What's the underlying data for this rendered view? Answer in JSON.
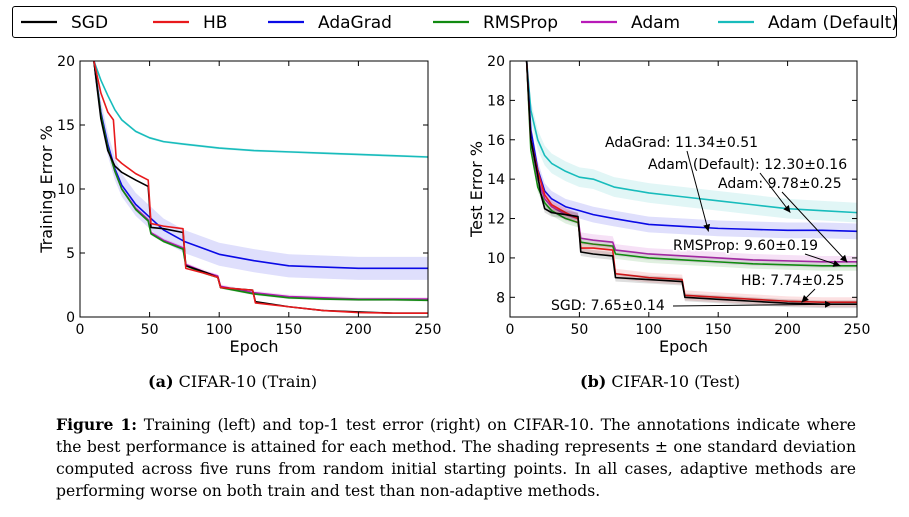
{
  "legend": {
    "entries": [
      {
        "name": "SGD",
        "color": "#000000"
      },
      {
        "name": "HB",
        "color": "#e8191c"
      },
      {
        "name": "AdaGrad",
        "color": "#0a0ae6"
      },
      {
        "name": "RMSProp",
        "color": "#118a11"
      },
      {
        "name": "Adam",
        "color": "#b81ab8"
      },
      {
        "name": "Adam (Default)",
        "color": "#18bcbc"
      }
    ]
  },
  "subcaptions": {
    "a_label": "(a)",
    "a_text": "CIFAR-10 (Train)",
    "b_label": "(b)",
    "b_text": "CIFAR-10 (Test)"
  },
  "caption": {
    "label": "Figure 1:",
    "text": "Training (left) and top-1 test error (right) on CIFAR-10. The annotations indicate where the best performance is attained for each method. The shading represents ± one standard deviation computed across five runs from random initial starting points. In all cases, adaptive methods are performing worse on both train and test than non-adaptive methods."
  },
  "chart_data": [
    {
      "type": "line",
      "xlabel": "Epoch",
      "ylabel": "Training Error %",
      "xlim": [
        0,
        250
      ],
      "ylim": [
        0,
        20
      ],
      "xticks": [
        0,
        50,
        100,
        150,
        200,
        250
      ],
      "yticks": [
        0,
        5,
        10,
        15,
        20
      ],
      "grid": false,
      "series": [
        {
          "name": "Adam (Default)",
          "color": "#18bcbc",
          "x": [
            10,
            15,
            20,
            25,
            30,
            40,
            50,
            60,
            75,
            100,
            125,
            150,
            175,
            200,
            225,
            250
          ],
          "y": [
            20,
            18.5,
            17.3,
            16.2,
            15.4,
            14.5,
            14.0,
            13.7,
            13.5,
            13.2,
            13.0,
            12.9,
            12.8,
            12.7,
            12.6,
            12.5
          ],
          "band": 0.1
        },
        {
          "name": "AdaGrad",
          "color": "#0a0ae6",
          "x": [
            10,
            15,
            20,
            25,
            30,
            40,
            50,
            60,
            75,
            90,
            100,
            125,
            150,
            175,
            200,
            225,
            250
          ],
          "y": [
            20,
            16.0,
            13.5,
            11.6,
            10.3,
            8.8,
            7.8,
            6.8,
            5.9,
            5.3,
            4.9,
            4.4,
            4.0,
            3.9,
            3.8,
            3.8,
            3.8
          ],
          "band": 0.9
        },
        {
          "name": "Adam",
          "color": "#b81ab8",
          "x": [
            10,
            15,
            20,
            25,
            30,
            40,
            49,
            51,
            60,
            74,
            76,
            90,
            99,
            101,
            125,
            150,
            175,
            200,
            225,
            250
          ],
          "y": [
            20,
            15.8,
            13.2,
            11.4,
            10.0,
            8.5,
            7.6,
            6.6,
            6.0,
            5.4,
            4.1,
            3.5,
            3.2,
            2.4,
            1.9,
            1.6,
            1.5,
            1.4,
            1.4,
            1.4
          ],
          "band": 0.15
        },
        {
          "name": "RMSProp",
          "color": "#118a11",
          "x": [
            10,
            15,
            20,
            25,
            30,
            40,
            49,
            51,
            60,
            74,
            76,
            90,
            99,
            101,
            125,
            150,
            175,
            200,
            225,
            250
          ],
          "y": [
            20,
            15.8,
            13.2,
            11.4,
            10.0,
            8.4,
            7.5,
            6.5,
            5.9,
            5.3,
            4.0,
            3.4,
            3.1,
            2.3,
            1.8,
            1.5,
            1.4,
            1.35,
            1.35,
            1.3
          ],
          "band": 0.1
        },
        {
          "name": "SGD",
          "color": "#000000",
          "x": [
            10,
            15,
            20,
            25,
            30,
            40,
            49,
            51,
            60,
            74,
            76,
            90,
            99,
            101,
            124,
            126,
            150,
            175,
            200,
            225,
            250
          ],
          "y": [
            20,
            15.5,
            13.0,
            11.8,
            11.3,
            10.7,
            10.2,
            7.0,
            6.9,
            6.6,
            4.0,
            3.5,
            3.1,
            2.3,
            2.1,
            1.2,
            0.8,
            0.5,
            0.4,
            0.3,
            0.3
          ],
          "band": 0
        },
        {
          "name": "HB",
          "color": "#e8191c",
          "x": [
            10,
            15,
            20,
            24,
            26,
            30,
            40,
            49,
            51,
            60,
            74,
            76,
            90,
            99,
            101,
            124,
            126,
            150,
            175,
            200,
            225,
            250
          ],
          "y": [
            20,
            17.5,
            16.0,
            15.4,
            12.4,
            12.0,
            11.2,
            10.7,
            7.3,
            7.1,
            6.9,
            3.8,
            3.4,
            3.1,
            2.3,
            2.1,
            1.1,
            0.8,
            0.5,
            0.35,
            0.3,
            0.3
          ],
          "band": 0
        }
      ]
    },
    {
      "type": "line",
      "xlabel": "Epoch",
      "ylabel": "Test Error %",
      "xlim": [
        0,
        250
      ],
      "ylim": [
        7,
        20
      ],
      "xticks": [
        0,
        50,
        100,
        150,
        200,
        250
      ],
      "yticks": [
        8,
        10,
        12,
        14,
        16,
        18,
        20
      ],
      "grid": false,
      "annotations": [
        {
          "text": "AdaGrad: 11.34±0.51",
          "x": 143,
          "y": 11.34
        },
        {
          "text": "Adam (Default): 12.30±0.16",
          "x": 202,
          "y": 12.3
        },
        {
          "text": "Adam: 9.78±0.25",
          "x": 243,
          "y": 9.78
        },
        {
          "text": "RMSProp: 9.60±0.19",
          "x": 238,
          "y": 9.6
        },
        {
          "text": "HB: 7.74±0.25",
          "x": 210,
          "y": 7.74
        },
        {
          "text": "SGD: 7.65±0.14",
          "x": 232,
          "y": 7.65
        }
      ],
      "series": [
        {
          "name": "Adam (Default)",
          "color": "#18bcbc",
          "x": [
            12,
            15,
            20,
            25,
            30,
            40,
            50,
            60,
            75,
            100,
            125,
            150,
            175,
            200,
            225,
            250
          ],
          "y": [
            20,
            17.5,
            16.0,
            15.2,
            14.8,
            14.4,
            14.1,
            14.0,
            13.6,
            13.3,
            13.1,
            12.9,
            12.7,
            12.5,
            12.4,
            12.3
          ],
          "band": 0.5
        },
        {
          "name": "AdaGrad",
          "color": "#0a0ae6",
          "x": [
            12,
            15,
            20,
            25,
            30,
            40,
            50,
            60,
            75,
            100,
            125,
            150,
            175,
            200,
            225,
            250
          ],
          "y": [
            20,
            16.5,
            14.5,
            13.4,
            13.0,
            12.6,
            12.4,
            12.2,
            12.0,
            11.7,
            11.6,
            11.5,
            11.45,
            11.4,
            11.4,
            11.35
          ],
          "band": 0.4
        },
        {
          "name": "Adam",
          "color": "#b81ab8",
          "x": [
            12,
            15,
            20,
            25,
            30,
            40,
            49,
            51,
            60,
            74,
            76,
            100,
            125,
            150,
            175,
            200,
            225,
            250
          ],
          "y": [
            20,
            16.0,
            14.0,
            13.0,
            12.6,
            12.2,
            12.0,
            11.0,
            10.9,
            10.8,
            10.4,
            10.2,
            10.1,
            10.0,
            9.9,
            9.85,
            9.8,
            9.8
          ],
          "band": 0.3
        },
        {
          "name": "RMSProp",
          "color": "#118a11",
          "x": [
            12,
            15,
            20,
            25,
            30,
            40,
            49,
            51,
            60,
            74,
            76,
            100,
            125,
            150,
            175,
            200,
            225,
            250
          ],
          "y": [
            20,
            15.5,
            13.6,
            12.8,
            12.4,
            12.0,
            11.8,
            10.8,
            10.7,
            10.6,
            10.2,
            10.0,
            9.9,
            9.8,
            9.7,
            9.65,
            9.6,
            9.6
          ],
          "band": 0.25
        },
        {
          "name": "HB",
          "color": "#e8191c",
          "x": [
            12,
            15,
            20,
            25,
            30,
            40,
            49,
            51,
            60,
            74,
            76,
            100,
            124,
            126,
            150,
            175,
            200,
            225,
            250
          ],
          "y": [
            20,
            16.0,
            14.4,
            13.2,
            12.7,
            12.3,
            12.0,
            10.5,
            10.5,
            10.4,
            9.2,
            9.0,
            8.9,
            8.1,
            8.0,
            7.9,
            7.8,
            7.75,
            7.75
          ],
          "band": 0.25
        },
        {
          "name": "SGD",
          "color": "#000000",
          "x": [
            12,
            15,
            20,
            22,
            25,
            30,
            40,
            49,
            51,
            60,
            74,
            76,
            100,
            124,
            126,
            150,
            175,
            200,
            225,
            250
          ],
          "y": [
            20,
            16.0,
            14.2,
            13.3,
            12.5,
            12.3,
            12.2,
            12.1,
            10.3,
            10.2,
            10.1,
            9.0,
            8.9,
            8.8,
            8.0,
            7.9,
            7.8,
            7.7,
            7.65,
            7.65
          ],
          "band": 0.2
        }
      ]
    }
  ]
}
